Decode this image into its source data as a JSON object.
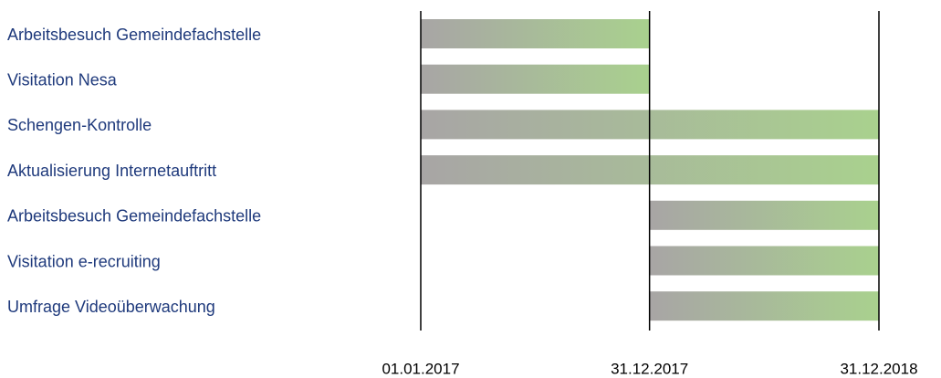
{
  "chart_data": {
    "type": "gantt",
    "categories": [
      "Arbeitsbesuch Gemeindefachstelle",
      "Visitation Nesa",
      "Schengen-Kontrolle",
      "Aktualisierung Internetauftritt",
      "Arbeitsbesuch Gemeindefachstelle",
      "Visitation e-recruiting",
      "Umfrage Videoüberwachung"
    ],
    "start": [
      "2017-01-01",
      "2017-01-01",
      "2017-01-01",
      "2017-01-01",
      "2017-12-31",
      "2017-12-31",
      "2017-12-31"
    ],
    "end": [
      "2017-12-31",
      "2017-12-31",
      "2018-12-31",
      "2018-12-31",
      "2018-12-31",
      "2018-12-31",
      "2018-12-31"
    ],
    "xlim": [
      "2017-01-01",
      "2018-12-31"
    ],
    "xticks": [
      {
        "value": "2017-01-01",
        "label": "01.01.2017"
      },
      {
        "value": "2017-12-31",
        "label": "31.12.2017"
      },
      {
        "value": "2018-12-31",
        "label": "31.12.2018"
      }
    ],
    "colors": [
      "#a8a5a5",
      "#a9d18e"
    ]
  }
}
